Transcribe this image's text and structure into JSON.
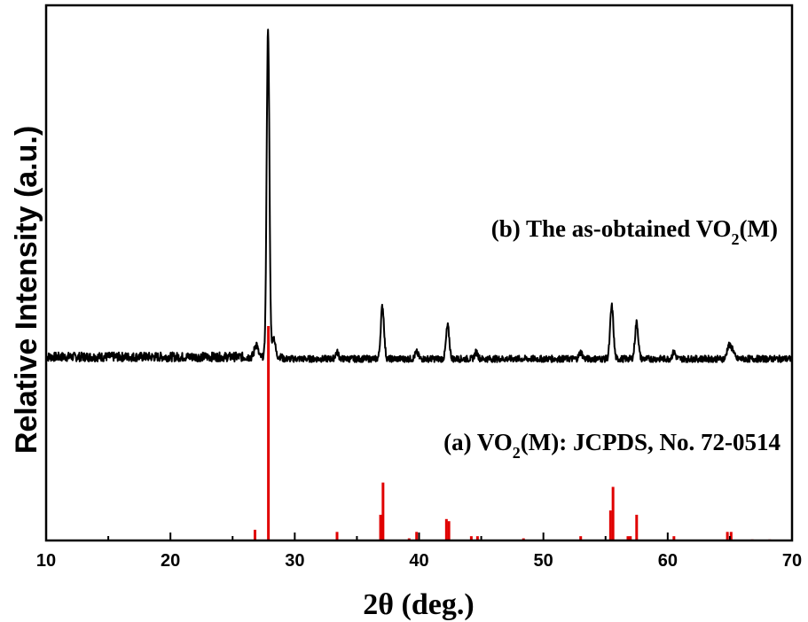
{
  "chart_data": {
    "type": "line",
    "xlabel": "2θ (deg.)",
    "ylabel": "Relative Intensity (a.u.)",
    "xlim": [
      10,
      70
    ],
    "x_ticks": [
      10,
      20,
      30,
      40,
      50,
      60,
      70
    ],
    "y_ticks_shown": false,
    "grid": false,
    "annotations": {
      "b": {
        "pre": "(b) The as-obtained VO",
        "sub": "2",
        "post": "(M)"
      },
      "a": {
        "pre": "(a) VO",
        "sub": "2",
        "post": "(M): JCPDS, No. 72-0514"
      }
    },
    "series": [
      {
        "name": "(b) The as-obtained VO2(M)",
        "kind": "line",
        "color": "#000000",
        "baseline": 0.06,
        "noise": 0.01,
        "peaks": [
          {
            "x": 26.9,
            "y": 0.04
          },
          {
            "x": 27.85,
            "y": 1.0
          },
          {
            "x": 28.3,
            "y": 0.06
          },
          {
            "x": 33.4,
            "y": 0.02
          },
          {
            "x": 37.05,
            "y": 0.16
          },
          {
            "x": 39.8,
            "y": 0.02
          },
          {
            "x": 42.3,
            "y": 0.1
          },
          {
            "x": 44.6,
            "y": 0.02
          },
          {
            "x": 53.0,
            "y": 0.02
          },
          {
            "x": 55.5,
            "y": 0.16
          },
          {
            "x": 57.5,
            "y": 0.11
          },
          {
            "x": 60.5,
            "y": 0.02
          },
          {
            "x": 64.9,
            "y": 0.04
          },
          {
            "x": 65.2,
            "y": 0.03
          }
        ]
      },
      {
        "name": "(a) VO2(M): JCPDS, No. 72-0514",
        "kind": "stick",
        "color": "#e00000",
        "sticks": [
          {
            "x": 18.3,
            "y": 0.3
          },
          {
            "x": 26.8,
            "y": 5
          },
          {
            "x": 27.88,
            "y": 100
          },
          {
            "x": 33.4,
            "y": 4
          },
          {
            "x": 36.9,
            "y": 12
          },
          {
            "x": 37.1,
            "y": 27
          },
          {
            "x": 39.2,
            "y": 1
          },
          {
            "x": 39.8,
            "y": 4
          },
          {
            "x": 42.2,
            "y": 10
          },
          {
            "x": 42.4,
            "y": 9
          },
          {
            "x": 44.2,
            "y": 2
          },
          {
            "x": 44.7,
            "y": 2
          },
          {
            "x": 48.4,
            "y": 1
          },
          {
            "x": 53.0,
            "y": 2
          },
          {
            "x": 55.4,
            "y": 14
          },
          {
            "x": 55.6,
            "y": 25
          },
          {
            "x": 56.8,
            "y": 2
          },
          {
            "x": 57.0,
            "y": 2
          },
          {
            "x": 57.5,
            "y": 12
          },
          {
            "x": 60.5,
            "y": 2
          },
          {
            "x": 64.8,
            "y": 4
          },
          {
            "x": 65.1,
            "y": 4
          },
          {
            "x": 66.8,
            "y": 0.5
          },
          {
            "x": 68.2,
            "y": 0.5
          }
        ]
      }
    ]
  }
}
